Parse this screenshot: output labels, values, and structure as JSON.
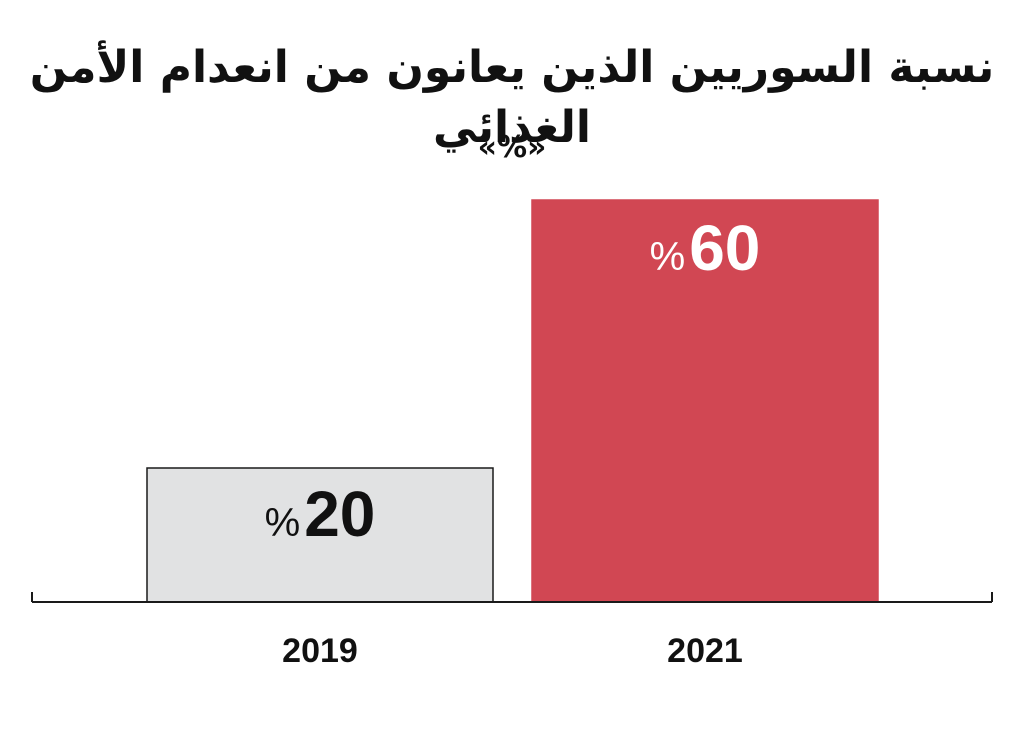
{
  "chart_data": {
    "type": "bar",
    "title": "نسبة السوريين الذين يعانون من انعدام الأمن الغذائي",
    "subtitle": "«%»",
    "categories": [
      "2019",
      "2021"
    ],
    "values": [
      20,
      60
    ],
    "value_labels": [
      {
        "number": "20",
        "unit": "%"
      },
      {
        "number": "60",
        "unit": "%"
      }
    ],
    "ylim": [
      0,
      60
    ],
    "grid": false,
    "colors": {
      "bars": [
        "#e1e2e3",
        "#d14753"
      ],
      "bar_outline": [
        "#1a1a1a",
        "#d14753"
      ],
      "value_text": [
        "#111111",
        "#ffffff"
      ],
      "axis": "#1a1a1a",
      "text": "#111111"
    }
  }
}
